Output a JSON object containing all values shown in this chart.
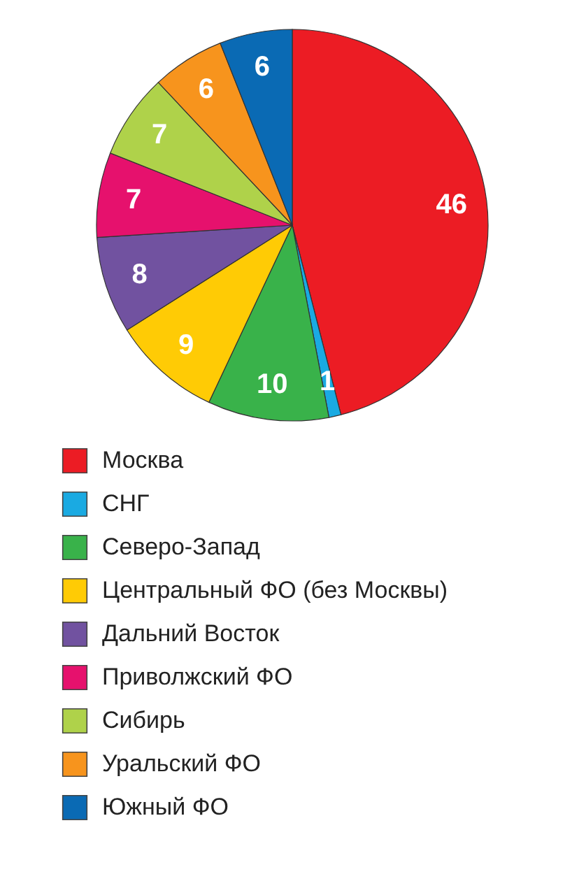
{
  "chart_data": {
    "type": "pie",
    "categories": [
      "Москва",
      "СНГ",
      "Северо-Запад",
      "Центральный ФО (без Москвы)",
      "Дальний Восток",
      "Приволжский ФО",
      "Сибирь",
      "Уральский ФО",
      "Южный ФО"
    ],
    "values": [
      46,
      1,
      10,
      9,
      8,
      7,
      7,
      6,
      6
    ],
    "colors": [
      "#ec1c24",
      "#1aaae2",
      "#39b24a",
      "#ffcb05",
      "#7152a0",
      "#e6116d",
      "#afd24a",
      "#f7941d",
      "#0a6ab4"
    ],
    "data_labels": true,
    "legend": "bottom"
  }
}
